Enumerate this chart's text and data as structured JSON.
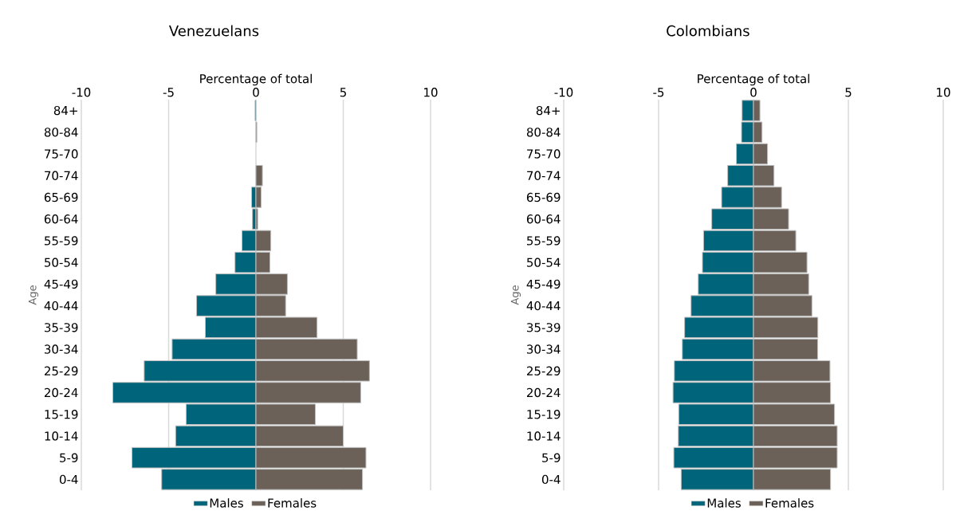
{
  "chart_data": [
    {
      "type": "bar",
      "orientation": "horizontal",
      "title": "Venezuelans",
      "xlabel": "Percentage of total",
      "ylabel": "Age",
      "categories": [
        "84+",
        "80-84",
        "75-70",
        "70-74",
        "65-69",
        "60-64",
        "55-59",
        "50-54",
        "45-49",
        "40-44",
        "35-39",
        "30-34",
        "25-29",
        "20-24",
        "15-19",
        "10-14",
        "5-9",
        "0-4"
      ],
      "series": [
        {
          "name": "Males",
          "color": "#00657a",
          "values": [
            -0.05,
            0,
            0,
            0,
            -0.25,
            -0.2,
            -0.8,
            -1.2,
            -2.3,
            -3.4,
            -2.9,
            -4.8,
            -6.4,
            -8.2,
            -4.0,
            -4.6,
            -7.1,
            -5.4
          ]
        },
        {
          "name": "Females",
          "color": "#6b6158",
          "values": [
            0,
            0.05,
            0,
            0.37,
            0.3,
            0.1,
            0.85,
            0.8,
            1.8,
            1.7,
            3.5,
            5.8,
            6.5,
            6.0,
            3.4,
            5.0,
            6.3,
            6.1
          ]
        }
      ],
      "xlim": [
        -10,
        10
      ],
      "xticks": [
        -10,
        -5,
        0,
        5,
        10
      ],
      "grid": "x",
      "legend": "bottom",
      "stacked": true
    },
    {
      "type": "bar",
      "orientation": "horizontal",
      "title": "Colombians",
      "xlabel": "Percentage of total",
      "ylabel": "Age",
      "categories": [
        "84+",
        "80-84",
        "75-70",
        "70-74",
        "65-69",
        "60-64",
        "55-59",
        "50-54",
        "45-49",
        "40-44",
        "35-39",
        "30-34",
        "25-29",
        "20-24",
        "15-19",
        "10-14",
        "5-9",
        "0-4"
      ],
      "series": [
        {
          "name": "Males",
          "color": "#00657a",
          "values": [
            -0.6,
            -0.63,
            -0.9,
            -1.36,
            -1.68,
            -2.2,
            -2.63,
            -2.69,
            -2.91,
            -3.29,
            -3.63,
            -3.75,
            -4.17,
            -4.24,
            -3.94,
            -3.96,
            -4.2,
            -3.81
          ]
        },
        {
          "name": "Females",
          "color": "#6b6158",
          "values": [
            0.34,
            0.45,
            0.74,
            1.08,
            1.48,
            1.85,
            2.23,
            2.82,
            2.91,
            3.08,
            3.39,
            3.38,
            4.03,
            4.06,
            4.27,
            4.41,
            4.41,
            4.06
          ]
        }
      ],
      "xlim": [
        -10,
        10
      ],
      "xticks": [
        -10,
        -5,
        0,
        5,
        10
      ],
      "grid": "x",
      "legend": "bottom",
      "stacked": true
    }
  ]
}
